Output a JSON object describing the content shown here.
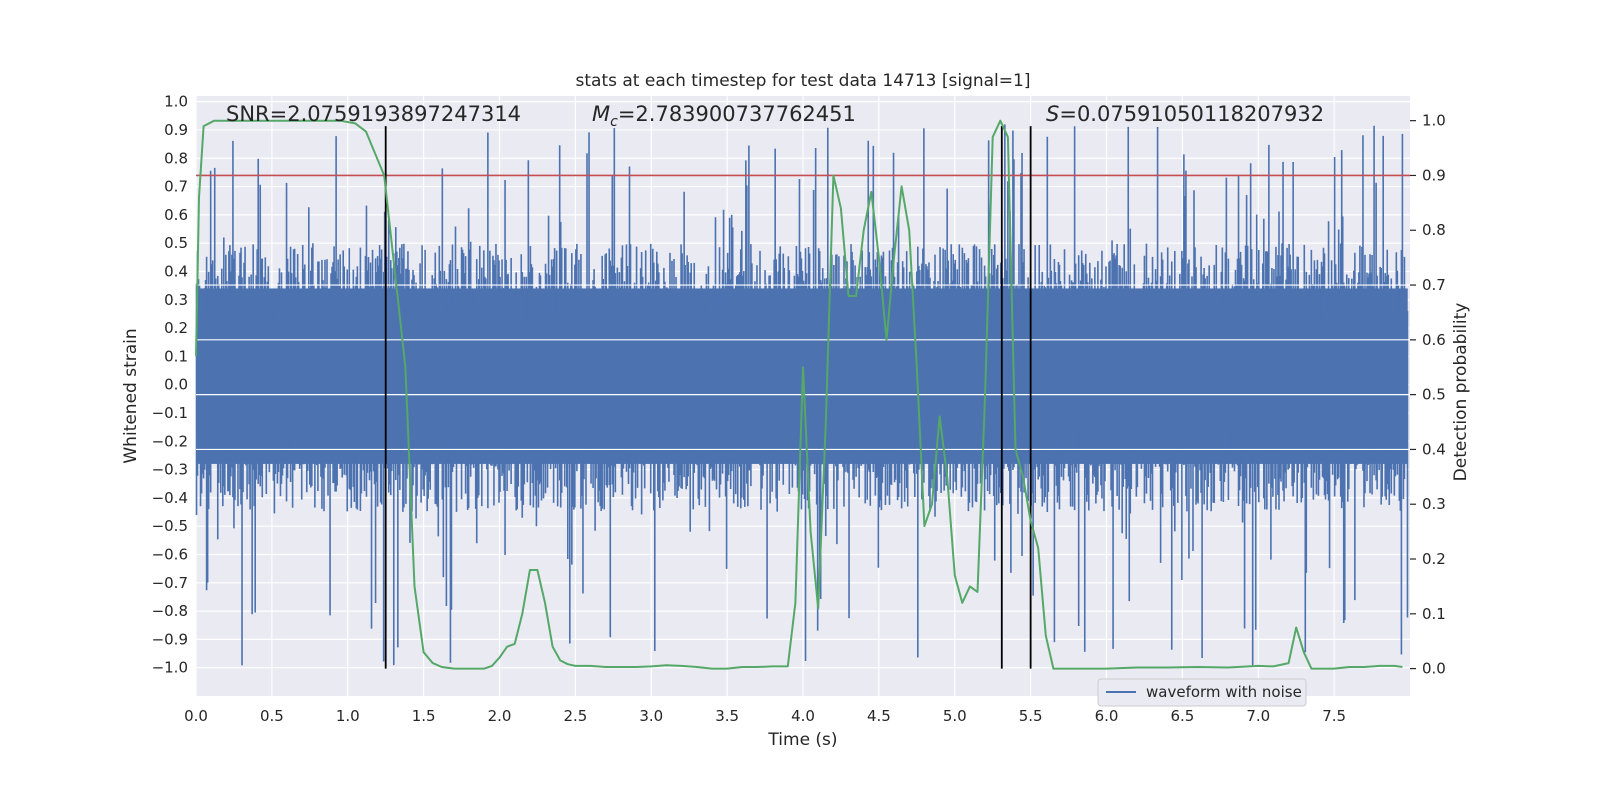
{
  "chart_data": {
    "type": "line",
    "title": "stats at each timestep for test data 14713 [signal=1]",
    "xlabel": "Time (s)",
    "ylabel": "Whitened strain",
    "ylabel_right": "Detection probability",
    "xlim": [
      0.0,
      8.0
    ],
    "ylim": [
      -1.1,
      1.02
    ],
    "ylim_right": [
      -0.05,
      1.045
    ],
    "x_ticks": [
      0.0,
      0.5,
      1.0,
      1.5,
      2.0,
      2.5,
      3.0,
      3.5,
      4.0,
      4.5,
      5.0,
      5.5,
      6.0,
      6.5,
      7.0,
      7.5
    ],
    "x_tick_labels": [
      "0.0",
      "0.5",
      "1.0",
      "1.5",
      "2.0",
      "2.5",
      "3.0",
      "3.5",
      "4.0",
      "4.5",
      "5.0",
      "5.5",
      "6.0",
      "6.5",
      "7.0",
      "7.5"
    ],
    "y_ticks": [
      1.0,
      0.9,
      0.8,
      0.7,
      0.6,
      0.5,
      0.4,
      0.3,
      0.2,
      0.1,
      0.0,
      -0.1,
      -0.2,
      -0.3,
      -0.4,
      -0.5,
      -0.6,
      -0.7,
      -0.8,
      -0.9,
      -1.0
    ],
    "y_tick_labels": [
      "1.0",
      "0.9",
      "0.8",
      "0.7",
      "0.6",
      "0.5",
      "0.4",
      "0.3",
      "0.2",
      "0.1",
      "0.0",
      "−0.1",
      "−0.2",
      "−0.3",
      "−0.4",
      "−0.5",
      "−0.6",
      "−0.7",
      "−0.8",
      "−0.9",
      "−1.0"
    ],
    "y_right_ticks": [
      1.0,
      0.9,
      0.8,
      0.7,
      0.6,
      0.5,
      0.4,
      0.3,
      0.2,
      0.1,
      0.0
    ],
    "y_right_tick_labels": [
      "1.0",
      "0.9",
      "0.8",
      "0.7",
      "0.6",
      "0.5",
      "0.4",
      "0.3",
      "0.2",
      "0.1",
      "0.0"
    ],
    "threshold": 0.9,
    "vertical_markers": [
      1.25,
      5.31,
      5.5
    ],
    "annotations": {
      "snr": "SNR=2.0759193897247314",
      "mc_symbol": "M",
      "mc_sub": "c",
      "mc_value": "=2.783900737762451",
      "s_symbol": "S",
      "s_value": "=0.07591050118207932"
    },
    "legend": {
      "label": "waveform with noise",
      "location": "lower right"
    },
    "series": [
      {
        "name": "waveform with noise",
        "color": "#4c72b0",
        "axis": "left",
        "envelope": {
          "typical_max": 0.5,
          "typical_min": -0.45,
          "peak_max": 0.92,
          "peak_min": -1.0
        }
      },
      {
        "name": "detection probability",
        "color": "#55a868",
        "axis": "right",
        "x": [
          0.0,
          0.02,
          0.05,
          0.12,
          0.25,
          0.5,
          0.75,
          0.95,
          1.05,
          1.12,
          1.18,
          1.24,
          1.3,
          1.38,
          1.44,
          1.5,
          1.56,
          1.62,
          1.7,
          1.8,
          1.9,
          1.95,
          2.0,
          2.05,
          2.1,
          2.15,
          2.2,
          2.25,
          2.3,
          2.35,
          2.4,
          2.45,
          2.5,
          2.6,
          2.7,
          2.8,
          2.9,
          3.0,
          3.1,
          3.2,
          3.3,
          3.4,
          3.5,
          3.6,
          3.7,
          3.8,
          3.9,
          3.95,
          4.0,
          4.05,
          4.1,
          4.15,
          4.2,
          4.25,
          4.3,
          4.35,
          4.4,
          4.45,
          4.5,
          4.55,
          4.6,
          4.65,
          4.7,
          4.75,
          4.8,
          4.85,
          4.9,
          4.95,
          5.0,
          5.05,
          5.1,
          5.15,
          5.2,
          5.25,
          5.3,
          5.35,
          5.4,
          5.45,
          5.5,
          5.55,
          5.6,
          5.65,
          5.7,
          5.75,
          5.8,
          5.85,
          5.9,
          6.0,
          6.2,
          6.4,
          6.6,
          6.8,
          7.0,
          7.1,
          7.2,
          7.25,
          7.3,
          7.35,
          7.4,
          7.5,
          7.6,
          7.7,
          7.8,
          7.9,
          7.95
        ],
        "values": [
          0.57,
          0.86,
          0.99,
          1.0,
          1.0,
          1.0,
          1.0,
          1.0,
          0.995,
          0.98,
          0.94,
          0.9,
          0.75,
          0.55,
          0.15,
          0.03,
          0.01,
          0.003,
          0.0,
          0.0,
          0.0,
          0.005,
          0.02,
          0.04,
          0.045,
          0.1,
          0.18,
          0.18,
          0.12,
          0.04,
          0.015,
          0.008,
          0.005,
          0.005,
          0.003,
          0.003,
          0.003,
          0.004,
          0.006,
          0.005,
          0.003,
          0.0,
          0.0,
          0.003,
          0.003,
          0.004,
          0.004,
          0.12,
          0.55,
          0.25,
          0.11,
          0.45,
          0.9,
          0.84,
          0.68,
          0.68,
          0.8,
          0.87,
          0.75,
          0.6,
          0.75,
          0.88,
          0.8,
          0.55,
          0.26,
          0.3,
          0.46,
          0.35,
          0.17,
          0.12,
          0.15,
          0.14,
          0.5,
          0.97,
          1.0,
          0.97,
          0.4,
          0.35,
          0.27,
          0.22,
          0.06,
          0.0,
          0.0,
          0.0,
          0.0,
          0.0,
          0.0,
          0.0,
          0.002,
          0.002,
          0.003,
          0.002,
          0.005,
          0.004,
          0.01,
          0.075,
          0.03,
          0.0,
          0.0,
          0.0,
          0.003,
          0.003,
          0.005,
          0.005,
          0.003
        ]
      }
    ]
  },
  "colors": {
    "plot_background": "#eaeaf2",
    "grid": "#ffffff",
    "strain": "#4c72b0",
    "probability": "#55a868",
    "threshold": "#c44e52",
    "marker": "#000000"
  }
}
